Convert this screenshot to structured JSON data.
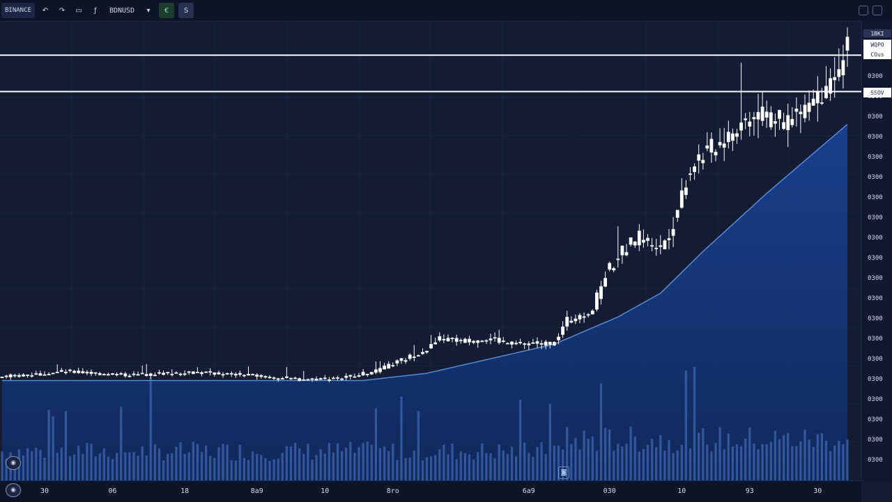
{
  "toolbar": {
    "symbol": "BINANCE",
    "tools": [
      {
        "name": "undo-icon",
        "glyph": "↶"
      },
      {
        "name": "redo-icon",
        "glyph": "↷"
      },
      {
        "name": "camera-icon",
        "glyph": "▭"
      },
      {
        "name": "indicator-icon",
        "glyph": "ƒ"
      }
    ],
    "ticker": "BDNUSD",
    "dropdown_glyph": "▾",
    "green_button": "€",
    "grey_button": "S"
  },
  "price_axis": {
    "tag_top": "1BKI",
    "tag_upper": "WQPO",
    "tag_upper2": "COus",
    "tag_lower": "SSOV",
    "labels": [
      "0300",
      "0300",
      "0300",
      "0300",
      "0300",
      "0300",
      "0300",
      "0300",
      "0300",
      "0300",
      "0300",
      "0300",
      "0300",
      "0300",
      "0300",
      "0300",
      "0300",
      "0300",
      "0300",
      "0300"
    ]
  },
  "time_axis": {
    "labels": [
      {
        "t": 10,
        "text": "30"
      },
      {
        "t": 26,
        "text": "06"
      },
      {
        "t": 43,
        "text": "18"
      },
      {
        "t": 60,
        "text": "8a9"
      },
      {
        "t": 76,
        "text": "10"
      },
      {
        "t": 92,
        "text": "8ro"
      },
      {
        "t": 124,
        "text": "6a9"
      },
      {
        "t": 143,
        "text": "030"
      },
      {
        "t": 160,
        "text": "10"
      },
      {
        "t": 176,
        "text": "93"
      },
      {
        "t": 192,
        "text": "30"
      }
    ]
  },
  "left_controls": [
    {
      "name": "visibility-toggle-icon",
      "glyph": "◉"
    },
    {
      "name": "settings-toggle-icon",
      "glyph": "◉"
    }
  ],
  "mid_icon": "◙",
  "colors": {
    "background": "#131c33",
    "candle": "#ffffff",
    "volume": "#3f66b0",
    "moving_average": "#4d8de0",
    "area_fill": "#14357a",
    "level_line": "#ffffff"
  },
  "chart_data": {
    "type": "candlestick",
    "description_series": [
      "price",
      "moving-average",
      "volume"
    ],
    "x_count": 200,
    "ylim": [
      0,
      100
    ],
    "horizontal_levels": [
      94,
      84
    ],
    "anchors": [
      {
        "t": 0,
        "price": 5.5
      },
      {
        "t": 15,
        "price": 7.0
      },
      {
        "t": 30,
        "price": 6.0
      },
      {
        "t": 45,
        "price": 6.8
      },
      {
        "t": 60,
        "price": 5.8
      },
      {
        "t": 70,
        "price": 4.8
      },
      {
        "t": 80,
        "price": 5.2
      },
      {
        "t": 88,
        "price": 7.0
      },
      {
        "t": 100,
        "price": 13.0
      },
      {
        "t": 103,
        "price": 16.0
      },
      {
        "t": 108,
        "price": 15.5
      },
      {
        "t": 115,
        "price": 16.0
      },
      {
        "t": 120,
        "price": 14.5
      },
      {
        "t": 130,
        "price": 15.0
      },
      {
        "t": 133,
        "price": 21.0
      },
      {
        "t": 139,
        "price": 24.0
      },
      {
        "t": 142,
        "price": 34.0
      },
      {
        "t": 146,
        "price": 40.0
      },
      {
        "t": 150,
        "price": 44.0
      },
      {
        "t": 155,
        "price": 41.0
      },
      {
        "t": 158,
        "price": 48.0
      },
      {
        "t": 161,
        "price": 60.0
      },
      {
        "t": 163,
        "price": 65.0
      },
      {
        "t": 167,
        "price": 68.0
      },
      {
        "t": 172,
        "price": 73.0
      },
      {
        "t": 178,
        "price": 79.0
      },
      {
        "t": 184,
        "price": 75.0
      },
      {
        "t": 188,
        "price": 79.0
      },
      {
        "t": 192,
        "price": 83.0
      },
      {
        "t": 196,
        "price": 88.0
      },
      {
        "t": 199,
        "price": 96.0
      }
    ],
    "moving_average": [
      {
        "t": 0,
        "value": 4.5
      },
      {
        "t": 85,
        "value": 4.5
      },
      {
        "t": 100,
        "value": 6.5
      },
      {
        "t": 115,
        "value": 10.5
      },
      {
        "t": 130,
        "value": 14.5
      },
      {
        "t": 145,
        "value": 22.0
      },
      {
        "t": 155,
        "value": 28.5
      },
      {
        "t": 165,
        "value": 40.0
      },
      {
        "t": 180,
        "value": 56.0
      },
      {
        "t": 199,
        "value": 75.0
      }
    ]
  }
}
